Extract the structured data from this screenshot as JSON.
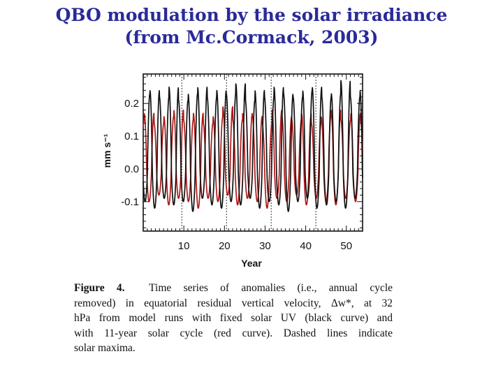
{
  "slide": {
    "title_line1": "QBO modulation by the solar irradiance",
    "title_line2": "(from Mc.Cormack, 2003)"
  },
  "caption": {
    "figure_label": "Figure 4.",
    "lines": [
      "Time series of anomalies (i.e., annual cycle",
      "removed) in equatorial residual vertical velocity, Δw*, at 32",
      "hPa from model runs with fixed solar UV (black curve) and",
      "with 11-year solar cycle (red curve). Dashed lines indicate",
      "solar maxima."
    ]
  },
  "chart_data": {
    "type": "line",
    "xlabel": "Year",
    "ylabel": "mm s⁻¹",
    "xlim": [
      0,
      54
    ],
    "ylim": [
      -0.19,
      0.29
    ],
    "x_ticks": [
      10,
      20,
      30,
      40,
      50
    ],
    "y_ticks": [
      -0.1,
      0.0,
      0.1,
      0.2
    ],
    "y_tick_labels": [
      "-0.1",
      "0.0",
      "0.1",
      "0.2"
    ],
    "solar_maxima_years": [
      9.5,
      20.5,
      31.5,
      42.5
    ],
    "series_colors": {
      "fixed_uv": "#111111",
      "solar_cycle": "#b01818"
    },
    "series": [
      {
        "key": "fixed_uv",
        "period_years": 2.35,
        "phase": 0.3,
        "amplitudes": [
          0.23,
          0.24,
          0.22,
          0.25,
          0.21,
          0.23,
          0.25,
          0.22,
          0.24,
          0.23,
          0.26,
          0.21,
          0.24,
          0.22,
          0.25,
          0.23,
          0.22,
          0.24,
          0.25,
          0.22,
          0.23,
          0.27,
          0.22,
          0.24
        ],
        "minima": [
          -0.1,
          -0.12,
          -0.09,
          -0.11,
          -0.1,
          -0.13,
          -0.09,
          -0.11,
          -0.12,
          -0.1,
          -0.11,
          -0.09,
          -0.12,
          -0.1,
          -0.11,
          -0.13,
          -0.1,
          -0.09,
          -0.12,
          -0.11,
          -0.1,
          -0.12,
          -0.09,
          -0.11
        ]
      },
      {
        "key": "solar_cycle",
        "period_years": 2.42,
        "phase": 0.9,
        "amplitudes": [
          0.15,
          0.17,
          0.14,
          0.16,
          0.18,
          0.15,
          0.17,
          0.14,
          0.16,
          0.19,
          0.15,
          0.17,
          0.16,
          0.14,
          0.18,
          0.16,
          0.15,
          0.17,
          0.14,
          0.16,
          0.18,
          0.15,
          0.17
        ],
        "minima": [
          -0.09,
          -0.1,
          -0.08,
          -0.11,
          -0.09,
          -0.1,
          -0.12,
          -0.09,
          -0.1,
          -0.08,
          -0.11,
          -0.09,
          -0.1,
          -0.12,
          -0.09,
          -0.1,
          -0.08,
          -0.11,
          -0.09,
          -0.1,
          -0.11,
          -0.09,
          -0.1
        ]
      }
    ]
  }
}
